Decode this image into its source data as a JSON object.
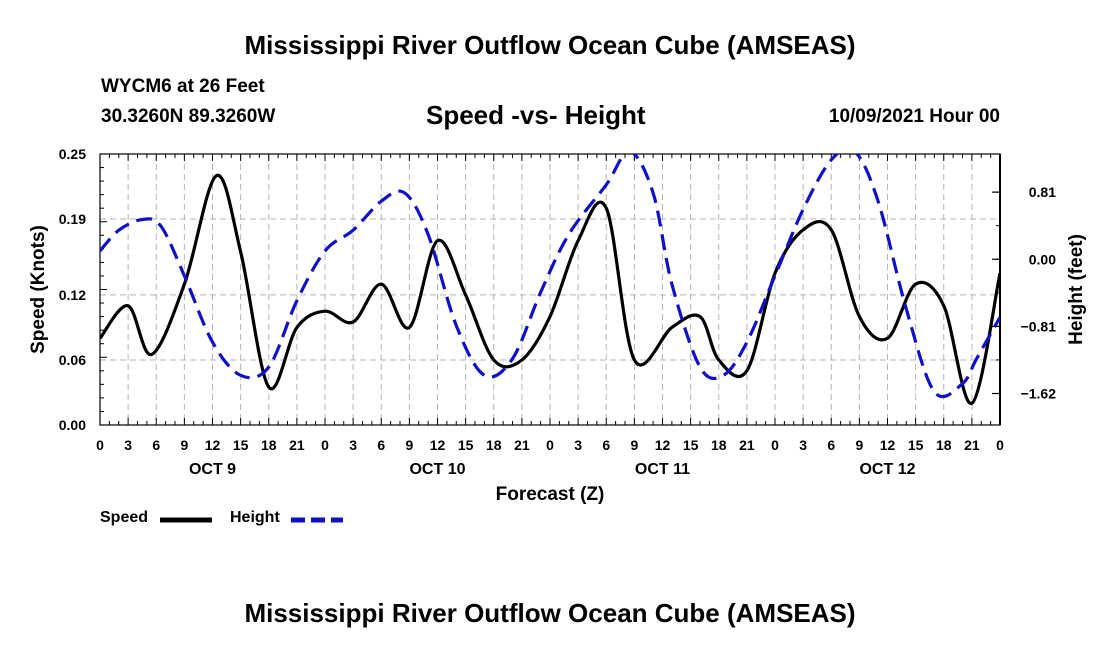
{
  "header": {
    "title": "Mississippi River Outflow Ocean Cube (AMSEAS)",
    "station": "WYCM6 at 26 Feet",
    "coords": "30.3260N  89.3260W",
    "subtitle": "Speed -vs- Height",
    "datetime": "10/09/2021 Hour 00"
  },
  "footer": {
    "title": "Mississippi River Outflow Ocean Cube (AMSEAS)"
  },
  "legend": {
    "speed_label": "Speed",
    "height_label": "Height"
  },
  "colors": {
    "speed": "#000000",
    "height": "#1010c8",
    "grid": "#b4b4b4"
  },
  "chart_data": {
    "type": "line",
    "title": "Speed -vs- Height",
    "xlabel": "Forecast (Z)",
    "ylabel": "Speed (Knots)",
    "y2label": "Height (feet)",
    "xlim": [
      0,
      96
    ],
    "ylim": [
      0,
      0.25
    ],
    "y2lim": [
      -2.0,
      1.27
    ],
    "x_ticks": [
      0,
      3,
      6,
      9,
      12,
      15,
      18,
      21,
      24,
      27,
      30,
      33,
      36,
      39,
      42,
      45,
      48,
      51,
      54,
      57,
      60,
      63,
      66,
      69,
      72,
      75,
      78,
      81,
      84,
      87,
      90,
      93,
      96
    ],
    "x_tick_labels": [
      "0",
      "3",
      "6",
      "9",
      "12",
      "15",
      "18",
      "21",
      "0",
      "3",
      "6",
      "9",
      "12",
      "15",
      "18",
      "21",
      "0",
      "3",
      "6",
      "9",
      "12",
      "15",
      "18",
      "21",
      "0",
      "3",
      "6",
      "9",
      "12",
      "15",
      "18",
      "21",
      "0"
    ],
    "day_labels": [
      {
        "x": 12,
        "label": "OCT 9"
      },
      {
        "x": 36,
        "label": "OCT 10"
      },
      {
        "x": 60,
        "label": "OCT 11"
      },
      {
        "x": 84,
        "label": "OCT 12"
      }
    ],
    "y_ticks": [
      0.0,
      0.06,
      0.12,
      0.19,
      0.25
    ],
    "y_tick_labels": [
      "0.00",
      "0.06",
      "0.12",
      "0.19",
      "0.25"
    ],
    "y2_ticks": [
      -1.62,
      -0.81,
      0.0,
      0.81
    ],
    "y2_tick_labels": [
      "−1.62",
      "−0.81",
      "0.00",
      "0.81"
    ],
    "series": [
      {
        "name": "Speed",
        "axis": "left",
        "style": "solid",
        "x": [
          0,
          3,
          5.5,
          9,
          12.4,
          15,
          18,
          21,
          24,
          27,
          30,
          33,
          36,
          39,
          42,
          45,
          48,
          51,
          54,
          57,
          61,
          64,
          66,
          69,
          72,
          75,
          78,
          81,
          84,
          87,
          90,
          93,
          96
        ],
        "values": [
          0.08,
          0.11,
          0.065,
          0.13,
          0.23,
          0.16,
          0.035,
          0.09,
          0.105,
          0.095,
          0.13,
          0.09,
          0.17,
          0.12,
          0.06,
          0.06,
          0.1,
          0.17,
          0.2,
          0.06,
          0.09,
          0.1,
          0.06,
          0.05,
          0.14,
          0.18,
          0.18,
          0.1,
          0.08,
          0.13,
          0.11,
          0.02,
          0.14
        ]
      },
      {
        "name": "Height",
        "axis": "right",
        "style": "dashed",
        "x": [
          0,
          2,
          4.5,
          6.5,
          9,
          12,
          15,
          18,
          21,
          24,
          27,
          30,
          32.5,
          35,
          38,
          41,
          44,
          47,
          50,
          54,
          56.5,
          59,
          61,
          64,
          66.5,
          69,
          72,
          75,
          78,
          80.5,
          83,
          86,
          89,
          92,
          93.5,
          96
        ],
        "values": [
          0.1,
          0.35,
          0.48,
          0.4,
          -0.2,
          -1.0,
          -1.4,
          -1.3,
          -0.5,
          0.1,
          0.35,
          0.7,
          0.8,
          0.3,
          -0.8,
          -1.4,
          -1.2,
          -0.4,
          0.3,
          0.9,
          1.3,
          0.8,
          -0.3,
          -1.3,
          -1.4,
          -1.0,
          -0.2,
          0.6,
          1.2,
          1.3,
          0.7,
          -0.6,
          -1.6,
          -1.5,
          -1.2,
          -0.7
        ]
      }
    ]
  }
}
